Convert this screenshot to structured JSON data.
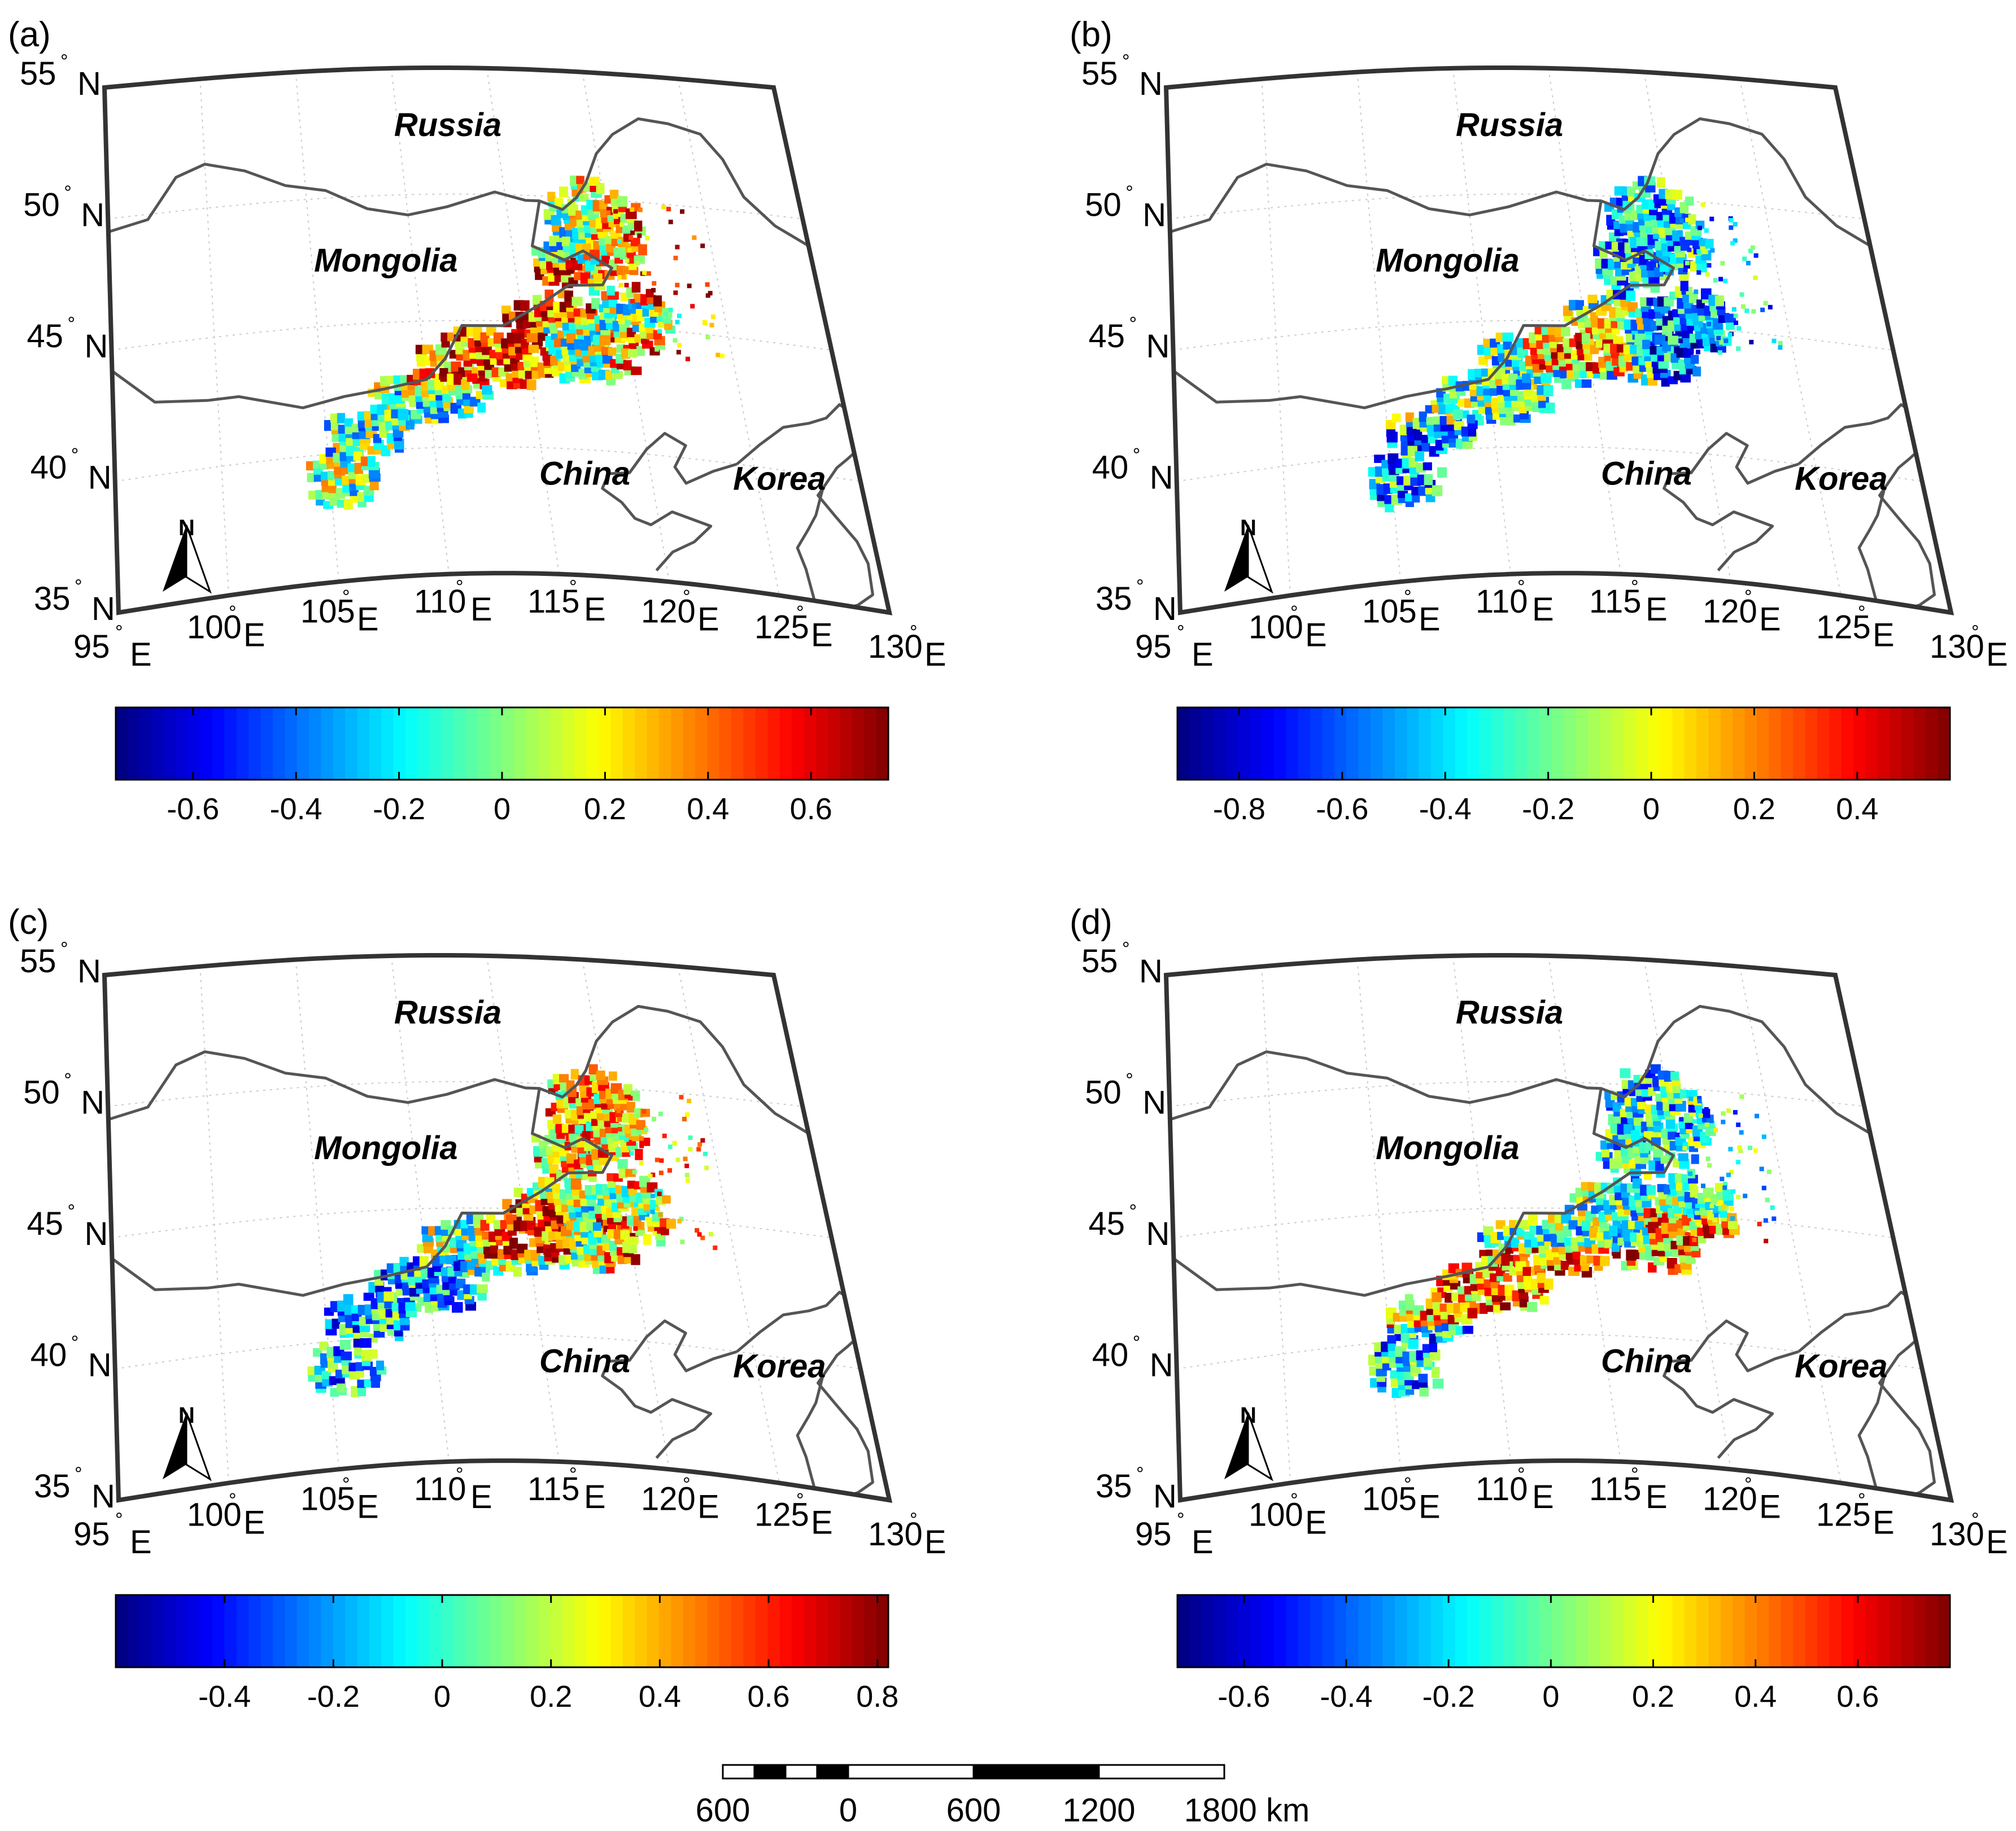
{
  "panels": [
    {
      "id": "a",
      "label": "(a)",
      "lat_labels": [
        "55",
        "50",
        "45",
        "40",
        "35"
      ],
      "lon_labels": [
        "95",
        "100",
        "105",
        "110",
        "115",
        "120",
        "125",
        "130"
      ],
      "countries": [
        "Russia",
        "Mongolia",
        "China",
        "Korea"
      ],
      "colorbar": {
        "ticks": [
          "-0.6",
          "-0.4",
          "-0.2",
          "0",
          "0.2",
          "0.4",
          "0.6"
        ],
        "range": [
          -0.75,
          0.75
        ]
      },
      "pattern": "a"
    },
    {
      "id": "b",
      "label": "(b)",
      "lat_labels": [
        "55",
        "50",
        "45",
        "40",
        "35"
      ],
      "lon_labels": [
        "95",
        "100",
        "105",
        "110",
        "115",
        "120",
        "125",
        "130"
      ],
      "countries": [
        "Russia",
        "Mongolia",
        "China",
        "Korea"
      ],
      "colorbar": {
        "ticks": [
          "-0.8",
          "-0.6",
          "-0.4",
          "-0.2",
          "0",
          "0.2",
          "0.4"
        ],
        "range": [
          -0.92,
          0.58
        ]
      },
      "pattern": "b"
    },
    {
      "id": "c",
      "label": "(c)",
      "lat_labels": [
        "55",
        "50",
        "45",
        "40",
        "35"
      ],
      "lon_labels": [
        "95",
        "100",
        "105",
        "110",
        "115",
        "120",
        "125",
        "130"
      ],
      "countries": [
        "Russia",
        "Mongolia",
        "China",
        "Korea"
      ],
      "colorbar": {
        "ticks": [
          "-0.4",
          "-0.2",
          "0",
          "0.2",
          "0.4",
          "0.6",
          "0.8"
        ],
        "range": [
          -0.6,
          0.82
        ]
      },
      "pattern": "c"
    },
    {
      "id": "d",
      "label": "(d)",
      "lat_labels": [
        "55",
        "50",
        "45",
        "40",
        "35"
      ],
      "lon_labels": [
        "95",
        "100",
        "105",
        "110",
        "115",
        "120",
        "125",
        "130"
      ],
      "countries": [
        "Russia",
        "Mongolia",
        "China",
        "Korea"
      ],
      "colorbar": {
        "ticks": [
          "-0.6",
          "-0.4",
          "-0.2",
          "0",
          "0.2",
          "0.4",
          "0.6"
        ],
        "range": [
          -0.73,
          0.78
        ]
      },
      "pattern": "d"
    }
  ],
  "axis_suffix": {
    "lat": "N",
    "lon": "E",
    "degree": "°"
  },
  "north_arrow": "N",
  "scale_bar": {
    "ticks": [
      "600",
      "0",
      "600",
      "1200",
      "1800 km"
    ]
  },
  "colors": {
    "border": "#555555",
    "frame": "#333333",
    "grid": "#cccccc"
  }
}
